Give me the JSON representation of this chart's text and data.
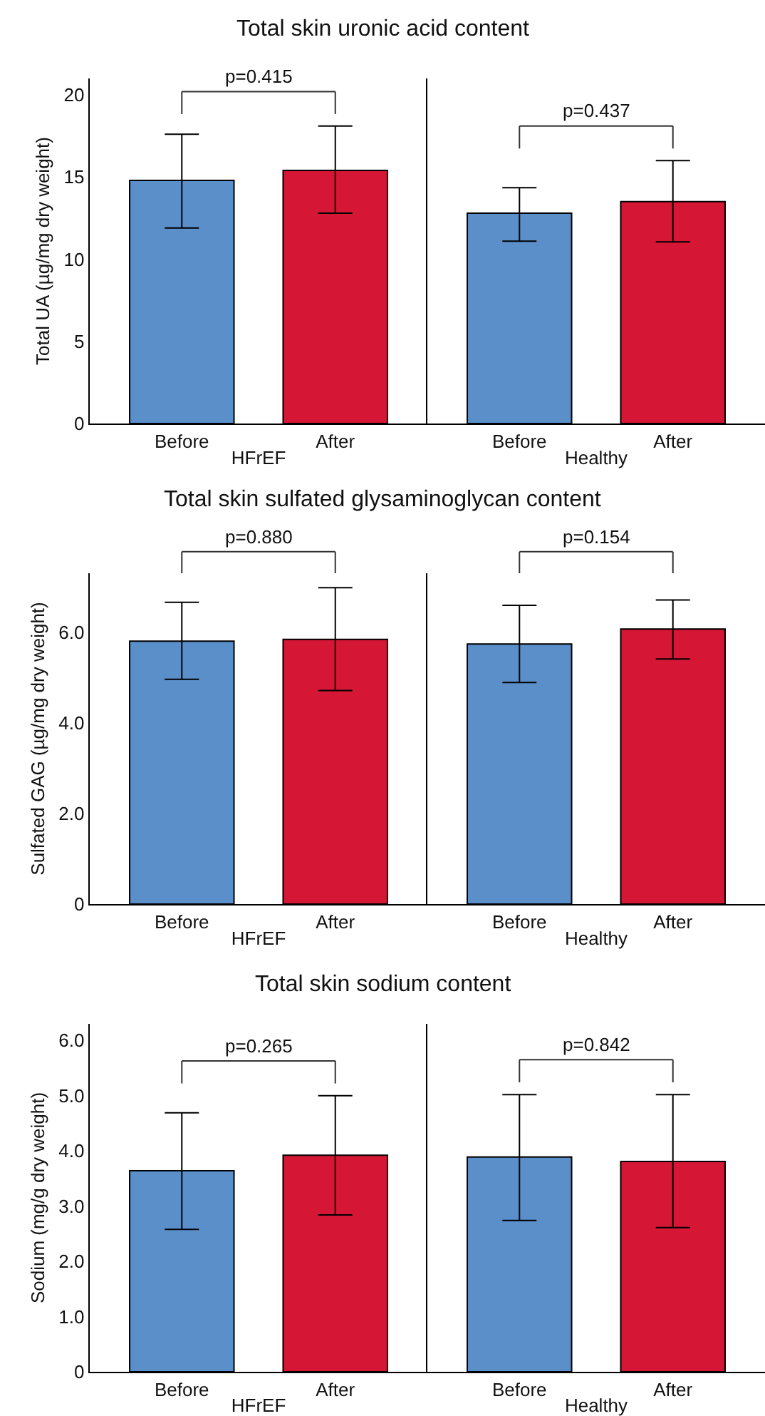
{
  "chart_data": [
    {
      "type": "bar",
      "title": "Total skin uronic acid content",
      "ylabel": "Total UA (µg/mg dry weight)",
      "xlabel": "HFrEF",
      "categories": [
        "Before",
        "After"
      ],
      "values": [
        14.8,
        15.4
      ],
      "colors": [
        "#5b8fc9",
        "#d51635"
      ],
      "errors": [
        [
          11.9,
          17.6
        ],
        [
          12.8,
          18.1
        ]
      ],
      "ylim": [
        0,
        21
      ],
      "yticks": [
        0,
        5,
        10,
        15,
        20
      ],
      "annotations": [
        "p=0.415"
      ]
    },
    {
      "type": "bar",
      "xlabel": "Healthy",
      "categories": [
        "Before",
        "After"
      ],
      "values": [
        12.8,
        13.5
      ],
      "colors": [
        "#5b8fc9",
        "#d51635"
      ],
      "errors": [
        [
          11.1,
          14.35
        ],
        [
          11.05,
          16.0
        ]
      ],
      "ylim": [
        0,
        21
      ],
      "yticks": [
        0,
        5,
        10,
        15,
        20
      ],
      "tick_labels": "x",
      "annotations": [
        "p=0.437"
      ]
    },
    {
      "type": "bar",
      "title": "Total skin sulfated glysaminoglycan content",
      "ylabel": "Sulfated GAG (µg/mg dry weight)",
      "xlabel": "HFrEF",
      "categories": [
        "Before",
        "After"
      ],
      "values": [
        5.8,
        5.84
      ],
      "colors": [
        "#5b8fc9",
        "#d51635"
      ],
      "errors": [
        [
          4.96,
          6.66
        ],
        [
          4.71,
          6.98
        ]
      ],
      "ylim": [
        0,
        7.3
      ],
      "yticks": [
        0,
        {
          "value": 2,
          "label": "2.0"
        },
        {
          "value": 4,
          "label": "4.0"
        },
        {
          "value": 6,
          "label": "6.0"
        }
      ],
      "annotations": [
        "p=0.880"
      ]
    },
    {
      "type": "bar",
      "xlabel": "Healthy",
      "categories": [
        "Before",
        "After"
      ],
      "values": [
        5.74,
        6.07
      ],
      "colors": [
        "#5b8fc9",
        "#d51635"
      ],
      "errors": [
        [
          4.89,
          6.59
        ],
        [
          5.41,
          6.71
        ]
      ],
      "ylim": [
        0,
        7.3
      ],
      "yticks": [
        0,
        2,
        4,
        6
      ],
      "tick_labels": "x",
      "annotations": [
        "p=0.154"
      ]
    },
    {
      "type": "bar",
      "title": "Total skin sodium content",
      "ylabel": "Sodium (mg/g dry weight)",
      "xlabel": "HFrEF",
      "categories": [
        "Before",
        "After"
      ],
      "values": [
        3.64,
        3.92
      ],
      "colors": [
        "#5b8fc9",
        "#d51635"
      ],
      "errors": [
        [
          2.58,
          4.69
        ],
        [
          2.84,
          5.0
        ]
      ],
      "ylim": [
        0,
        6.3
      ],
      "yticks": [
        0,
        {
          "value": 1,
          "label": "1.0"
        },
        {
          "value": 2,
          "label": "2.0"
        },
        {
          "value": 3,
          "label": "3.0"
        },
        {
          "value": 4,
          "label": "4.0"
        },
        {
          "value": 5,
          "label": "5.0"
        },
        {
          "value": 6,
          "label": "6.0"
        }
      ],
      "annotations": [
        "p=0.265"
      ]
    },
    {
      "type": "bar",
      "xlabel": "Healthy",
      "categories": [
        "Before",
        "After"
      ],
      "values": [
        3.89,
        3.81
      ],
      "colors": [
        "#5b8fc9",
        "#d51635"
      ],
      "errors": [
        [
          2.74,
          5.02
        ],
        [
          2.61,
          5.02
        ]
      ],
      "ylim": [
        0,
        6.3
      ],
      "yticks": [
        0,
        1,
        2,
        3,
        4,
        5,
        6
      ],
      "tick_labels": "x",
      "annotations": [
        "p=0.842"
      ]
    }
  ]
}
